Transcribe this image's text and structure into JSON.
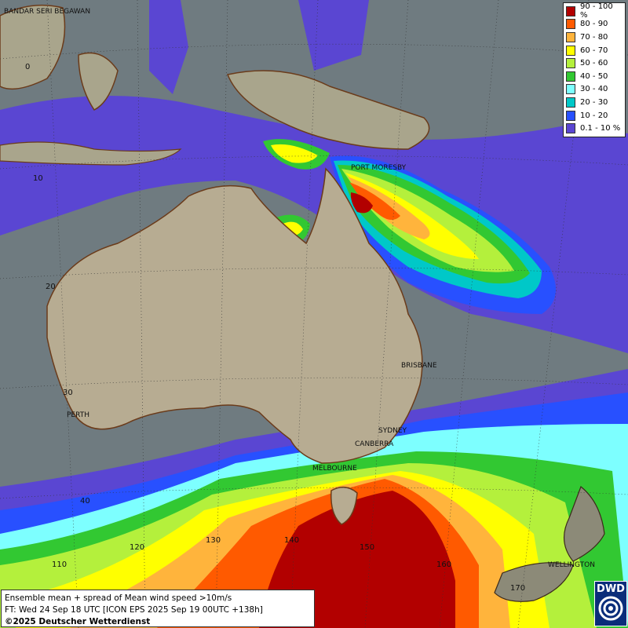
{
  "legend": [
    {
      "label": "90 - 100 %",
      "color": "#b20000"
    },
    {
      "label": "80 - 90",
      "color": "#ff5a00"
    },
    {
      "label": "70 - 80",
      "color": "#ffb43c"
    },
    {
      "label": "60 - 70",
      "color": "#ffff00"
    },
    {
      "label": "50 - 60",
      "color": "#b4f03c"
    },
    {
      "label": "40 - 50",
      "color": "#32c832"
    },
    {
      "label": "30 - 40",
      "color": "#7dffff"
    },
    {
      "label": "20 - 30",
      "color": "#00c8c8"
    },
    {
      "label": "10 - 20",
      "color": "#2850ff"
    },
    {
      "label": "0.1 - 10 %",
      "color": "#5a46d2"
    }
  ],
  "cities": [
    {
      "name": "BANDAR SERI BEGAWAN"
    },
    {
      "name": "PORT MORESBY"
    },
    {
      "name": "BRISBANE"
    },
    {
      "name": "PERTH"
    },
    {
      "name": "SYDNEY"
    },
    {
      "name": "CANBERRA"
    },
    {
      "name": "MELBOURNE"
    },
    {
      "name": "WELLINGTON"
    }
  ],
  "grid_labels": {
    "lat": [
      "0",
      "10",
      "20",
      "30",
      "40"
    ],
    "lon": [
      "110",
      "120",
      "130",
      "140",
      "150",
      "160",
      "170"
    ]
  },
  "caption": {
    "line1": "Ensemble mean + spread of Mean wind speed >10m/s",
    "line2": "FT: Wed 24 Sep 18 UTC [ICON EPS 2025 Sep 19 00UTC +138h]",
    "line3": "©2025 Deutscher Wetterdienst"
  },
  "logo": {
    "text": "DWD"
  }
}
